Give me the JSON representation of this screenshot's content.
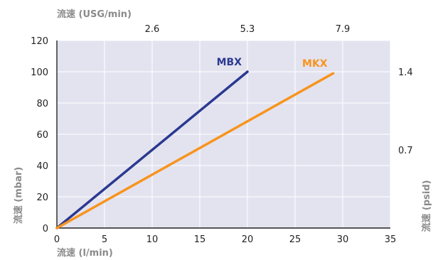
{
  "chart_data": {
    "type": "line",
    "xlabel": "流速 (l/min)",
    "ylabel": "流速 (mbar)",
    "top_xlabel": "流速 (USG/min)",
    "right_ylabel": "流速 (psid)",
    "xlim": [
      0,
      35
    ],
    "ylim": [
      0,
      120
    ],
    "x_ticks": [
      0,
      5,
      10,
      15,
      20,
      25,
      30,
      35
    ],
    "y_ticks": [
      0,
      20,
      40,
      60,
      80,
      100,
      120
    ],
    "top_x_ticks": [
      {
        "label": "2.6",
        "at": 10
      },
      {
        "label": "5.3",
        "at": 20
      },
      {
        "label": "7.9",
        "at": 30
      }
    ],
    "right_y_ticks": [
      {
        "label": "1.4",
        "at": 100
      },
      {
        "label": "0.7",
        "at": 50
      }
    ],
    "grid": true,
    "background": "#e3e3f0",
    "series": [
      {
        "name": "MBX",
        "color": "#2b3990",
        "x": [
          0,
          20
        ],
        "y": [
          0,
          100
        ]
      },
      {
        "name": "MKX",
        "color": "#f7941d",
        "x": [
          0,
          29
        ],
        "y": [
          0,
          99
        ]
      }
    ]
  }
}
